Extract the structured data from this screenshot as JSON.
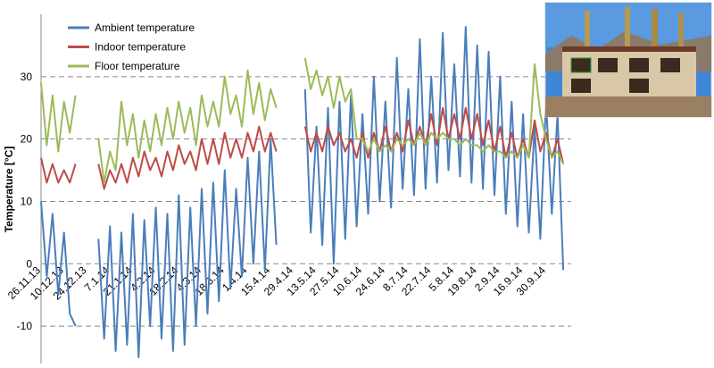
{
  "chart_data": {
    "type": "line",
    "y_label": "Temperature [°C]",
    "categories": [
      "26.11.13",
      null,
      null,
      null,
      "10.12.13",
      null,
      null,
      null,
      "24.12.13",
      null,
      null,
      null,
      "7.1.14",
      null,
      null,
      null,
      "21.1.14",
      null,
      null,
      null,
      "4.2.14",
      null,
      null,
      null,
      "18.2.14",
      null,
      null,
      null,
      "4.3.14",
      null,
      null,
      null,
      "18.3.14",
      null,
      null,
      null,
      "1.4.14",
      null,
      null,
      null,
      "15.4.14",
      null,
      null,
      null,
      "29.4.14",
      null,
      null,
      null,
      "13.5.14",
      null,
      null,
      null,
      "27.5.14",
      null,
      null,
      null,
      "10.6.14",
      null,
      null,
      null,
      "24.6.14",
      null,
      null,
      null,
      "8.7.14",
      null,
      null,
      null,
      "22.7.14",
      null,
      null,
      null,
      "5.8.14",
      null,
      null,
      null,
      "19.8.14",
      null,
      null,
      null,
      "2.9.14",
      null,
      null,
      null,
      "16.9.14",
      null,
      null,
      null,
      "30.9.14",
      null,
      null,
      null
    ],
    "series": [
      {
        "name": "Ambient temperature",
        "color": "#4a7ebb",
        "values": [
          10,
          -2,
          8,
          -5,
          5,
          -8,
          -10,
          null,
          null,
          null,
          4,
          -12,
          6,
          -14,
          5,
          -13,
          8,
          -15,
          7,
          -10,
          9,
          -12,
          8,
          -14,
          11,
          -13,
          9,
          -10,
          12,
          -8,
          13,
          -6,
          15,
          -4,
          12,
          -2,
          17,
          0,
          18,
          -1,
          20,
          3,
          null,
          null,
          null,
          null,
          28,
          5,
          22,
          3,
          25,
          0,
          26,
          4,
          27,
          6,
          24,
          8,
          30,
          10,
          26,
          9,
          33,
          12,
          28,
          11,
          36,
          12,
          30,
          13,
          37,
          15,
          32,
          14,
          38,
          13,
          35,
          12,
          34,
          11,
          30,
          8,
          26,
          6,
          24,
          5,
          22,
          4,
          26,
          8,
          24,
          -1
        ]
      },
      {
        "name": "Indoor temperature",
        "color": "#be4b48",
        "values": [
          17,
          13,
          16,
          13,
          15,
          13,
          16,
          null,
          null,
          null,
          16,
          12,
          15,
          13,
          16,
          13,
          17,
          14,
          18,
          15,
          17,
          14,
          18,
          15,
          19,
          16,
          18,
          15,
          20,
          16,
          20,
          16,
          21,
          17,
          20,
          17,
          21,
          18,
          22,
          18,
          21,
          18,
          null,
          null,
          null,
          null,
          22,
          18,
          21,
          18,
          22,
          19,
          21,
          18,
          20,
          17,
          21,
          17,
          21,
          18,
          22,
          18,
          21,
          18,
          23,
          19,
          22,
          19,
          24,
          19,
          25,
          20,
          24,
          20,
          25,
          20,
          24,
          19,
          23,
          18,
          22,
          17,
          21,
          17,
          20,
          17,
          23,
          18,
          21,
          17,
          20,
          16
        ]
      },
      {
        "name": "Floor temperature",
        "color": "#9bbb59",
        "values": [
          29,
          19,
          27,
          18,
          26,
          21,
          27,
          null,
          null,
          null,
          20,
          13,
          18,
          15,
          26,
          19,
          24,
          17,
          23,
          18,
          24,
          19,
          25,
          20,
          26,
          21,
          25,
          19,
          27,
          22,
          26,
          22,
          30,
          24,
          27,
          22,
          31,
          24,
          29,
          23,
          28,
          25,
          null,
          null,
          null,
          null,
          33,
          28,
          31,
          27,
          30,
          25,
          30,
          26,
          28,
          20,
          20,
          18,
          20,
          18,
          19,
          18,
          20,
          19,
          20,
          19,
          21,
          19,
          21,
          20,
          21,
          20,
          20,
          19,
          20,
          19,
          19,
          18,
          19,
          18,
          18,
          17,
          18,
          17,
          19,
          17,
          32,
          24,
          20,
          17,
          18,
          16
        ]
      }
    ],
    "ylim": [
      -16,
      40
    ],
    "yticks": [
      -10,
      0,
      10,
      20,
      30
    ],
    "grid": true
  }
}
